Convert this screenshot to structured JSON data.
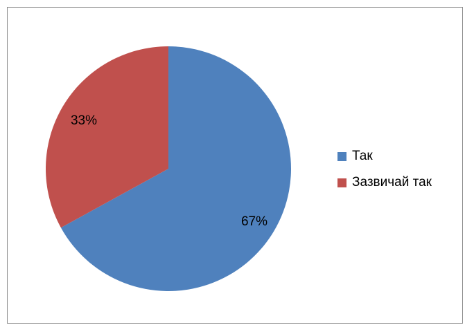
{
  "chart_data": {
    "type": "pie",
    "categories": [
      "Так",
      "Зазвичай так"
    ],
    "values": [
      67,
      33
    ],
    "data_labels": [
      "67%",
      "33%"
    ],
    "colors": [
      "#4f81bd",
      "#c0504d"
    ],
    "start": "12 o'clock, clockwise",
    "legend_position": "right"
  }
}
